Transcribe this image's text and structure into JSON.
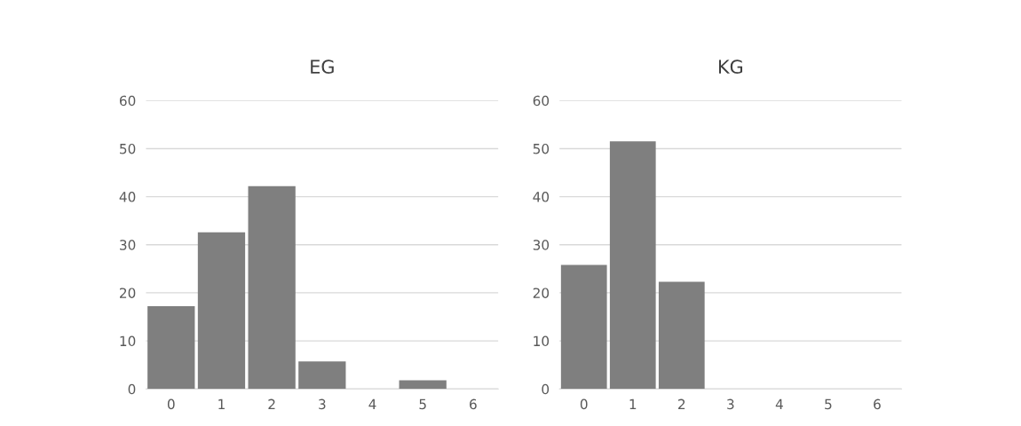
{
  "chart_data": [
    {
      "type": "bar",
      "title": "EG",
      "categories": [
        "0",
        "1",
        "2",
        "3",
        "4",
        "5",
        "6"
      ],
      "values": [
        17.2,
        32.6,
        42.2,
        5.7,
        0,
        1.8,
        0
      ],
      "color": "#7f7f7f",
      "ylim": [
        0,
        60
      ],
      "yticks": [
        0,
        10,
        20,
        30,
        40,
        50,
        60
      ],
      "grid": "y"
    },
    {
      "type": "bar",
      "title": "KG",
      "categories": [
        "0",
        "1",
        "2",
        "3",
        "4",
        "5",
        "6"
      ],
      "values": [
        25.8,
        51.5,
        22.3,
        0,
        0,
        0,
        0
      ],
      "color": "#7f7f7f",
      "ylim": [
        0,
        60
      ],
      "yticks": [
        0,
        10,
        20,
        30,
        40,
        50,
        60
      ],
      "grid": "y"
    }
  ]
}
